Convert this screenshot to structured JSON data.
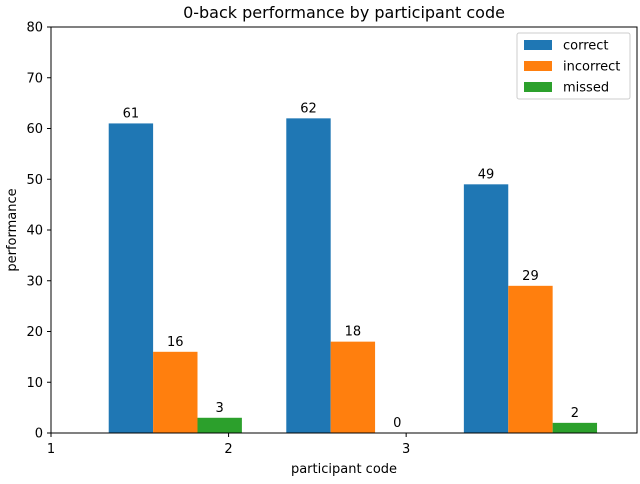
{
  "chart_data": {
    "type": "bar",
    "title": "0-back performance by participant code",
    "xlabel": "participant code",
    "ylabel": "performance",
    "ylim": [
      0,
      80
    ],
    "yticks": [
      0,
      10,
      20,
      30,
      40,
      50,
      60,
      70,
      80
    ],
    "xticks": [
      {
        "label": "1",
        "value": 1
      },
      {
        "label": "2",
        "value": 2
      },
      {
        "label": "3",
        "value": 3
      }
    ],
    "xlim": [
      1,
      4.3
    ],
    "groups": [
      {
        "x": 1.7
      },
      {
        "x": 2.7
      },
      {
        "x": 3.7
      }
    ],
    "series": [
      {
        "name": "correct",
        "color": "#1f77b4",
        "values": [
          61,
          62,
          49
        ]
      },
      {
        "name": "incorrect",
        "color": "#ff7f0e",
        "values": [
          16,
          18,
          29
        ]
      },
      {
        "name": "missed",
        "color": "#2ca02c",
        "values": [
          3,
          0,
          2
        ]
      }
    ],
    "legend_position": "top-right",
    "grid": false
  }
}
